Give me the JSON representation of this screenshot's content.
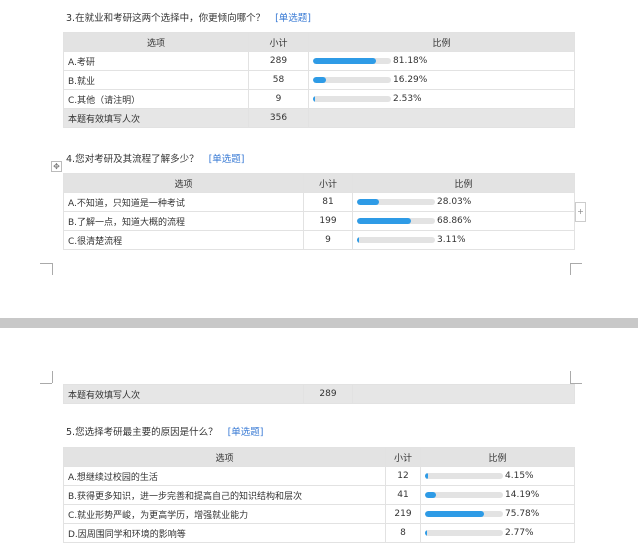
{
  "headers": {
    "option": "选项",
    "count": "小计",
    "ratio": "比例"
  },
  "q3": {
    "title": "3.在就业和考研这两个选择中，你更倾向哪个？",
    "tag": "[单选题]",
    "rows": [
      {
        "option": "A.考研",
        "count": "289",
        "pct": "81.18%",
        "value": 81.18
      },
      {
        "option": "B.就业",
        "count": "58",
        "pct": "16.29%",
        "value": 16.29
      },
      {
        "option": "C.其他（请注明）",
        "count": "9",
        "pct": "2.53%",
        "value": 2.53
      }
    ],
    "total_label": "本题有效填写人次",
    "total": "356"
  },
  "q4": {
    "title": "4.您对考研及其流程了解多少？",
    "tag": "[单选题]",
    "rows": [
      {
        "option": "A.不知道，只知道是一种考试",
        "count": "81",
        "pct": "28.03%",
        "value": 28.03
      },
      {
        "option": "B.了解一点，知道大概的流程",
        "count": "199",
        "pct": "68.86%",
        "value": 68.86
      },
      {
        "option": "C.很清楚流程",
        "count": "9",
        "pct": "3.11%",
        "value": 3.11
      }
    ],
    "total_label": "本题有效填写人次",
    "total": "289"
  },
  "q5": {
    "title": "5.您选择考研最主要的原因是什么？",
    "tag": "[单选题]",
    "rows": [
      {
        "option": "A.想继续过校园的生活",
        "count": "12",
        "pct": "4.15%",
        "value": 4.15
      },
      {
        "option": "B.获得更多知识，进一步完善和提高自己的知识结构和层次",
        "count": "41",
        "pct": "14.19%",
        "value": 14.19
      },
      {
        "option": "C.就业形势严峻，为更高学历，增强就业能力",
        "count": "219",
        "pct": "75.78%",
        "value": 75.78
      },
      {
        "option": "D.因周围同学和环境的影响等",
        "count": "8",
        "pct": "2.77%",
        "value": 2.77
      }
    ]
  },
  "colors": {
    "bar_fill": "#2e9be6",
    "bar_track": "#e3e3e3",
    "tag": "#3a7bd5"
  },
  "icons": {
    "move": "move-icon",
    "add": "plus-icon"
  }
}
